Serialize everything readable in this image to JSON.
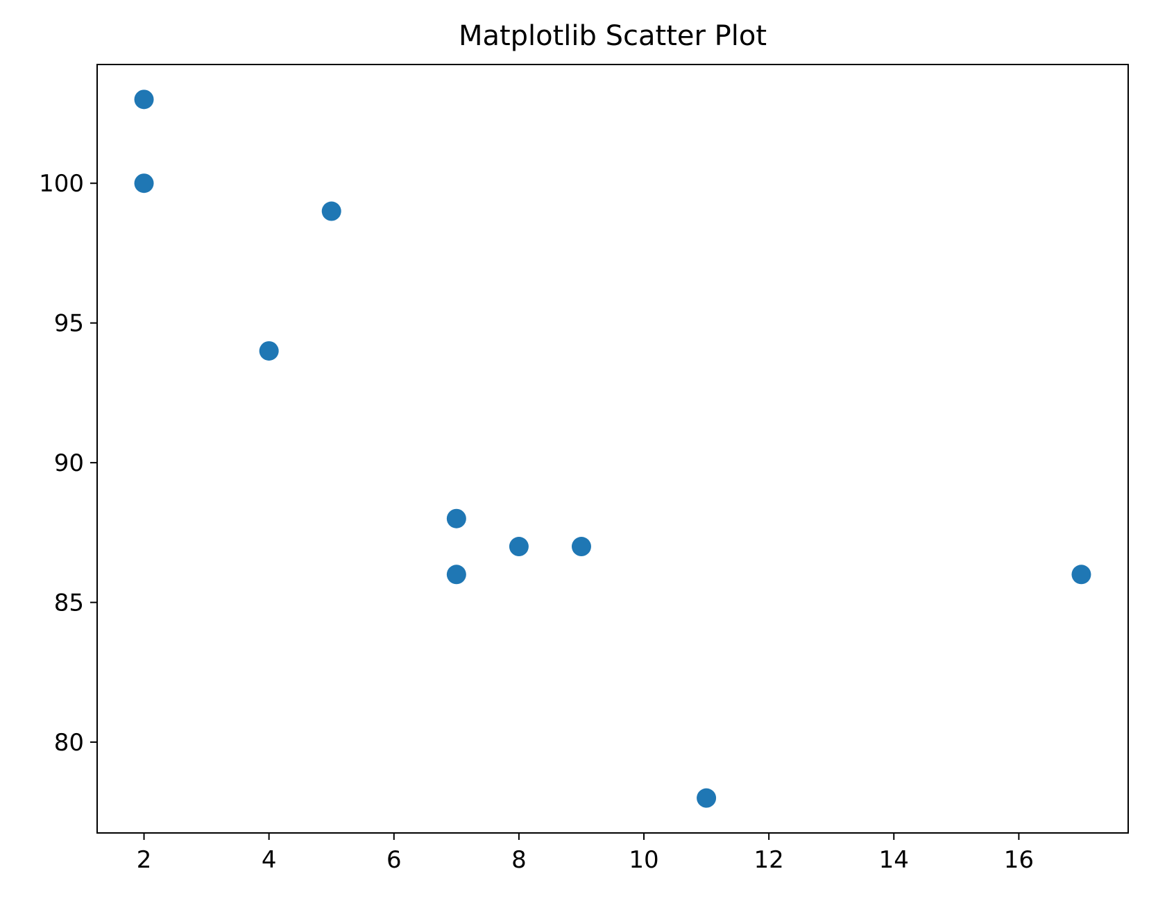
{
  "chart_data": {
    "type": "scatter",
    "title": "Matplotlib Scatter Plot",
    "xlabel": "",
    "ylabel": "",
    "x": [
      2,
      2,
      4,
      5,
      7,
      7,
      8,
      9,
      11,
      17
    ],
    "y": [
      103,
      100,
      94,
      99,
      88,
      86,
      87,
      87,
      78,
      86
    ],
    "xlim": [
      1.25,
      17.75
    ],
    "ylim": [
      76.75,
      104.25
    ],
    "xticks": [
      2,
      4,
      6,
      8,
      10,
      12,
      14,
      16
    ],
    "yticks": [
      80,
      85,
      90,
      95,
      100
    ],
    "grid": false,
    "legend": "none",
    "colors": {
      "marker": "#1f77b4",
      "axes": "#000000",
      "background": "#ffffff"
    }
  }
}
